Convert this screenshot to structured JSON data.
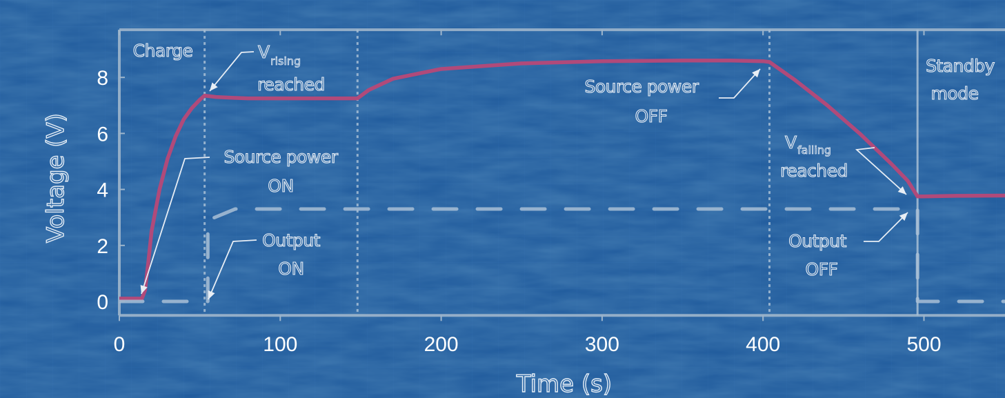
{
  "colors": {
    "background": "#1f5a9c",
    "voltage_line": "#b04a7a",
    "output_line": "#a9c0d6",
    "frame": "#9fb6cc",
    "annotation_text": "#e8eef5"
  },
  "chart_data": {
    "type": "line",
    "xlabel": "Time (s)",
    "ylabel": "Voltage (V)",
    "xlim": [
      0,
      550
    ],
    "ylim": [
      -0.5,
      9.7
    ],
    "xticks": [
      0,
      100,
      200,
      300,
      400,
      500
    ],
    "yticks": [
      0,
      2,
      4,
      6,
      8
    ],
    "grid": false,
    "series": [
      {
        "style": "solid",
        "color": "#b04a7a",
        "x": [
          0,
          14,
          16,
          18,
          20,
          25,
          30,
          35,
          40,
          45,
          50,
          53,
          60,
          70,
          80,
          100,
          120,
          140,
          148,
          155,
          170,
          200,
          250,
          300,
          350,
          380,
          400,
          404,
          420,
          440,
          460,
          480,
          490,
          496,
          500,
          520,
          550
        ],
        "y": [
          0.1,
          0.1,
          0.4,
          1.4,
          2.5,
          4.0,
          5.1,
          5.9,
          6.5,
          6.9,
          7.2,
          7.35,
          7.3,
          7.27,
          7.25,
          7.25,
          7.25,
          7.25,
          7.25,
          7.55,
          7.95,
          8.3,
          8.5,
          8.58,
          8.6,
          8.6,
          8.58,
          8.55,
          7.9,
          7.0,
          6.0,
          4.9,
          4.3,
          3.75,
          3.75,
          3.77,
          3.78
        ]
      },
      {
        "style": "dashed",
        "color": "#a9c0d6",
        "x": [
          0,
          55,
          55,
          72,
          470,
          496,
          496,
          520,
          550
        ],
        "y": [
          0,
          0,
          2.9,
          3.3,
          3.3,
          3.3,
          0,
          0,
          0
        ]
      }
    ],
    "phase_lines": [
      {
        "x": 53,
        "style": "dotted"
      },
      {
        "x": 148,
        "style": "dotted"
      },
      {
        "x": 404,
        "style": "dotted"
      },
      {
        "x": 496,
        "style": "solid"
      }
    ],
    "annotations": [
      {
        "id": "charge",
        "lines": [
          "Charge"
        ]
      },
      {
        "id": "v_rising",
        "lines": [
          "V",
          "reached"
        ],
        "subscript": "rising"
      },
      {
        "id": "source_on",
        "lines": [
          "Source power",
          "ON"
        ]
      },
      {
        "id": "output_on",
        "lines": [
          "Output",
          "ON"
        ]
      },
      {
        "id": "source_off",
        "lines": [
          "Source power",
          "OFF"
        ]
      },
      {
        "id": "v_falling",
        "lines": [
          "V",
          "reached"
        ],
        "subscript": "falling"
      },
      {
        "id": "output_off",
        "lines": [
          "Output",
          "OFF"
        ]
      },
      {
        "id": "standby",
        "lines": [
          "Standby",
          "mode"
        ]
      }
    ]
  }
}
